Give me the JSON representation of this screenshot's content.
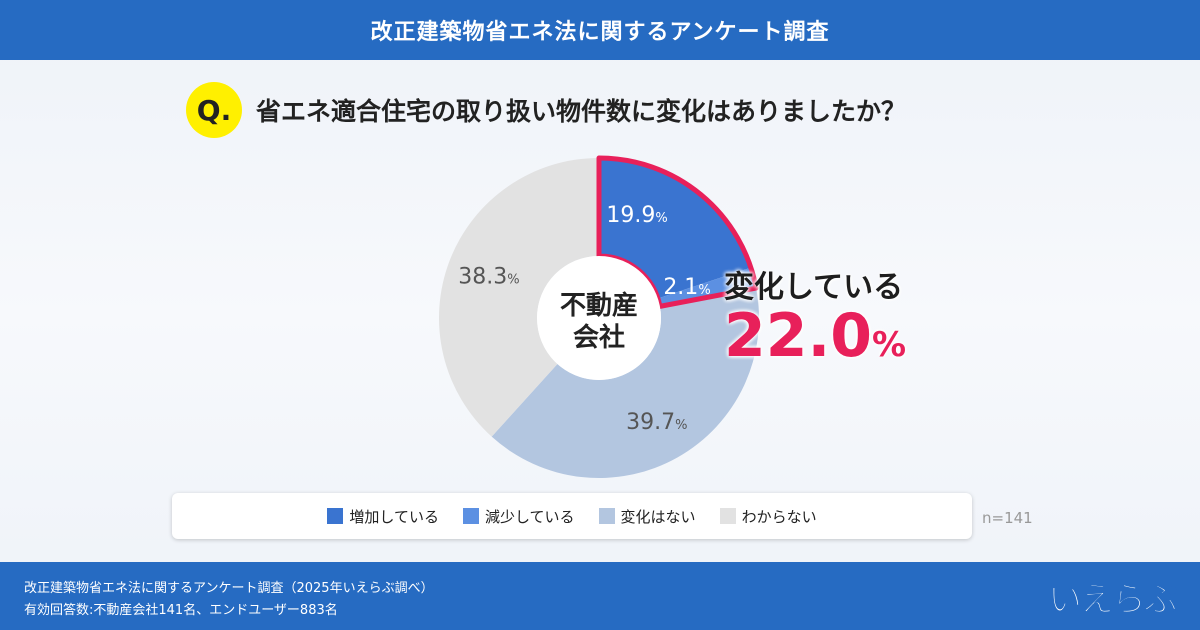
{
  "header": {
    "title": "改正建築物省エネ法に関するアンケート調査"
  },
  "question": {
    "badge": "Q.",
    "text": "省エネ適合住宅の取り扱い物件数に変化はありましたか？"
  },
  "chart_data": {
    "type": "pie",
    "donut": true,
    "center_label": [
      "不動産",
      "会社"
    ],
    "categories": [
      "増加している",
      "減少している",
      "変化はない",
      "わからない"
    ],
    "values": [
      19.9,
      2.1,
      39.7,
      38.3
    ],
    "labels": [
      "19.9",
      "2.1",
      "39.7",
      "38.3"
    ],
    "unit": "%",
    "colors": [
      "#3a74d0",
      "#5c90e2",
      "#b3c6e0",
      "#e2e2e2"
    ],
    "highlight_color": "#e8205a",
    "legend_position": "bottom",
    "annotation": {
      "label": "変化している",
      "value": "22.0",
      "unit": "%"
    },
    "n_label": "n=141"
  },
  "footer": {
    "line1": "改正建築物省エネ法に関するアンケート調査（2025年いえらぶ調べ）",
    "line2": "有効回答数:不動産会社141名、エンドユーザー883名",
    "logo": "いえらぶ"
  }
}
